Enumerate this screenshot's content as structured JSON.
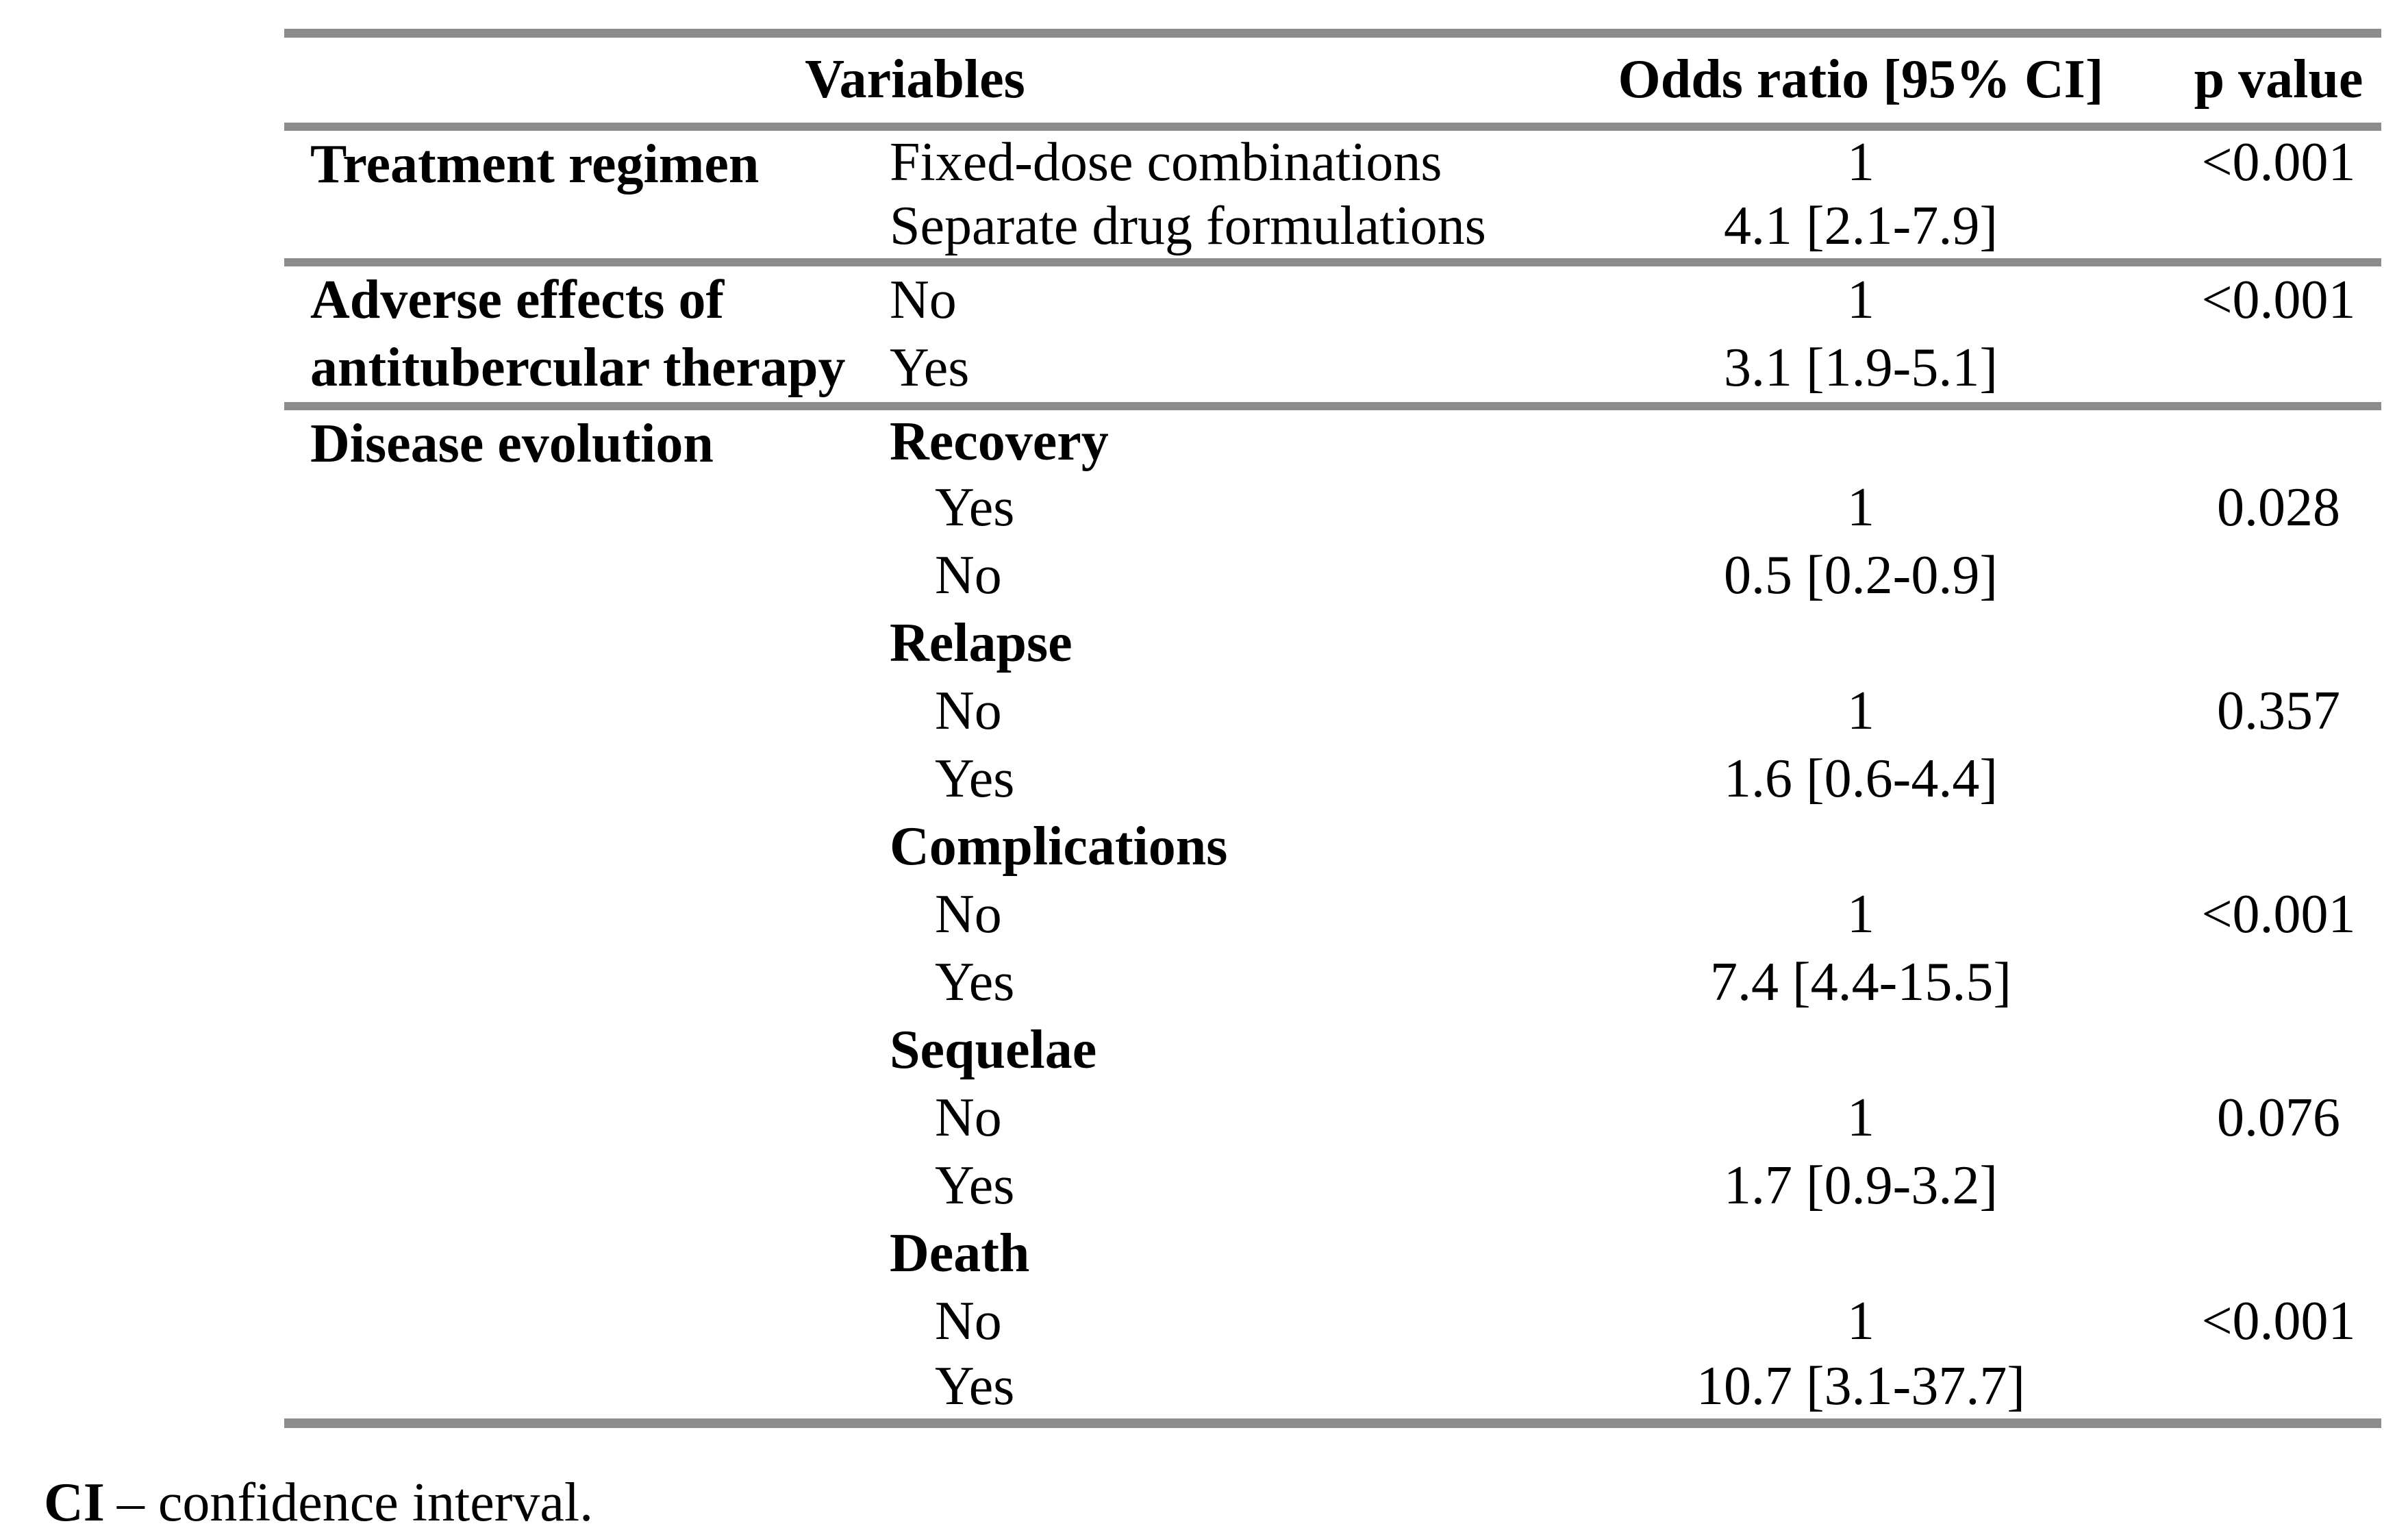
{
  "colors": {
    "rule": "#8c8c8c",
    "text": "#000000",
    "background": "#ffffff"
  },
  "table": {
    "columns": {
      "variables": "Variables",
      "odds_ratio": "Odds ratio [95% CI]",
      "p_value": "p value"
    },
    "groups": [
      {
        "variable_lines": [
          "Treatment regimen"
        ],
        "rows": [
          {
            "category": "Fixed-dose combinations",
            "odds_ratio": "1",
            "p_value": "<0.001"
          },
          {
            "category": "Separate drug formulations",
            "odds_ratio": "4.1 [2.1-7.9]",
            "p_value": ""
          }
        ]
      },
      {
        "variable_lines": [
          "Adverse effects of",
          "antitubercular therapy"
        ],
        "rows": [
          {
            "category": "No",
            "odds_ratio": "1",
            "p_value": "<0.001"
          },
          {
            "category": "Yes",
            "odds_ratio": "3.1 [1.9-5.1]",
            "p_value": ""
          }
        ]
      },
      {
        "variable_lines": [
          "Disease evolution"
        ],
        "rows": [
          {
            "category": "Recovery",
            "odds_ratio": "",
            "p_value": ""
          },
          {
            "category": "Yes",
            "odds_ratio": "1",
            "p_value": "0.028"
          },
          {
            "category": "No",
            "odds_ratio": "0.5 [0.2-0.9]",
            "p_value": ""
          },
          {
            "category": "Relapse",
            "odds_ratio": "",
            "p_value": ""
          },
          {
            "category": "No",
            "odds_ratio": "1",
            "p_value": "0.357"
          },
          {
            "category": "Yes",
            "odds_ratio": "1.6 [0.6-4.4]",
            "p_value": ""
          },
          {
            "category": "Complications",
            "odds_ratio": "",
            "p_value": ""
          },
          {
            "category": "No",
            "odds_ratio": "1",
            "p_value": "<0.001"
          },
          {
            "category": "Yes",
            "odds_ratio": "7.4 [4.4-15.5]",
            "p_value": ""
          },
          {
            "category": "Sequelae",
            "odds_ratio": "",
            "p_value": ""
          },
          {
            "category": "No",
            "odds_ratio": "1",
            "p_value": "0.076"
          },
          {
            "category": "Yes",
            "odds_ratio": "1.7 [0.9-3.2]",
            "p_value": ""
          },
          {
            "category": "Death",
            "odds_ratio": "",
            "p_value": ""
          },
          {
            "category": "No",
            "odds_ratio": "1",
            "p_value": "<0.001"
          },
          {
            "category": "Yes",
            "odds_ratio": "10.7 [3.1-37.7]",
            "p_value": ""
          }
        ]
      }
    ],
    "footnote": {
      "abbr": "CI",
      "text": "– confidence interval."
    }
  }
}
